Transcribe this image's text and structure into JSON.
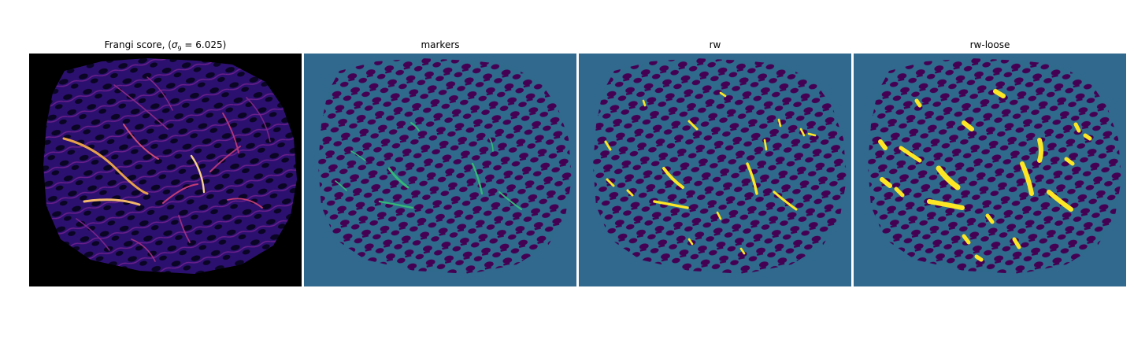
{
  "figure": {
    "panels": [
      {
        "id": "frangi",
        "title_prefix": "Frangi score, (",
        "title_sigma": "σ",
        "title_sub": "9",
        "title_suffix": " = 6.025)",
        "colormap": "magma",
        "background": "#000000"
      },
      {
        "id": "markers",
        "title": "markers",
        "colormap": "viridis",
        "background": "#31688e"
      },
      {
        "id": "rw",
        "title": "rw",
        "colormap": "viridis",
        "background": "#31688e"
      },
      {
        "id": "rw-loose",
        "title": "rw-loose",
        "colormap": "viridis",
        "background": "#31688e"
      }
    ],
    "colors": {
      "tissue_dark": "#440154",
      "tissue_field": "#2f6a8c",
      "marker_green": "#35b779",
      "label_yellow": "#fde725",
      "frangi_low": "#2c1070",
      "frangi_mid": "#b5367a",
      "frangi_high": "#fcfdbf"
    }
  }
}
